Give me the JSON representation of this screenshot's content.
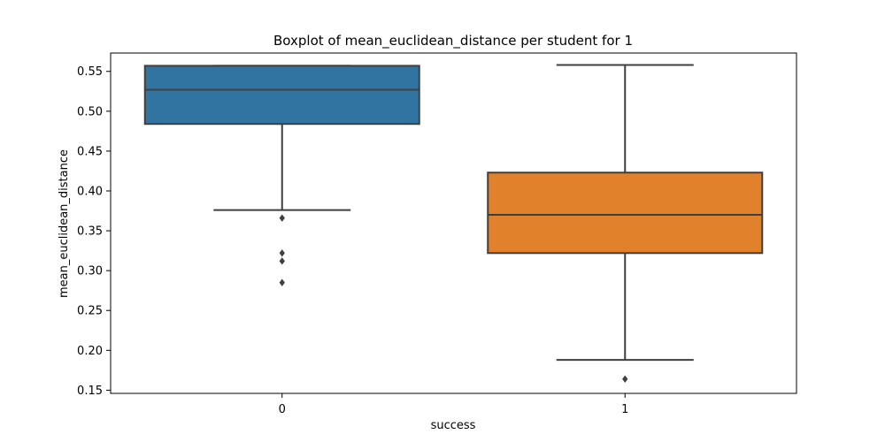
{
  "chart_data": {
    "type": "boxplot",
    "title": "Boxplot of mean_euclidean_distance per student for 1",
    "xlabel": "success",
    "ylabel": "mean_euclidean_distance",
    "categories": [
      "0",
      "1"
    ],
    "ylim": [
      0.146,
      0.573
    ],
    "yticks": [
      0.15,
      0.2,
      0.25,
      0.3,
      0.35,
      0.4,
      0.45,
      0.5,
      0.55
    ],
    "ytick_labels": [
      "0.15",
      "0.20",
      "0.25",
      "0.30",
      "0.35",
      "0.40",
      "0.45",
      "0.50",
      "0.55"
    ],
    "grid": false,
    "colors": [
      "#3274a1",
      "#e1812c"
    ],
    "box_edge_color": "#3f3f3f",
    "boxes": [
      {
        "category": "0",
        "whisker_low": 0.376,
        "q1": 0.484,
        "median": 0.527,
        "q3": 0.557,
        "whisker_high": 0.557,
        "outliers": [
          0.366,
          0.322,
          0.312,
          0.285
        ]
      },
      {
        "category": "1",
        "whisker_low": 0.188,
        "q1": 0.322,
        "median": 0.37,
        "q3": 0.423,
        "whisker_high": 0.558,
        "outliers": [
          0.164
        ]
      }
    ]
  }
}
